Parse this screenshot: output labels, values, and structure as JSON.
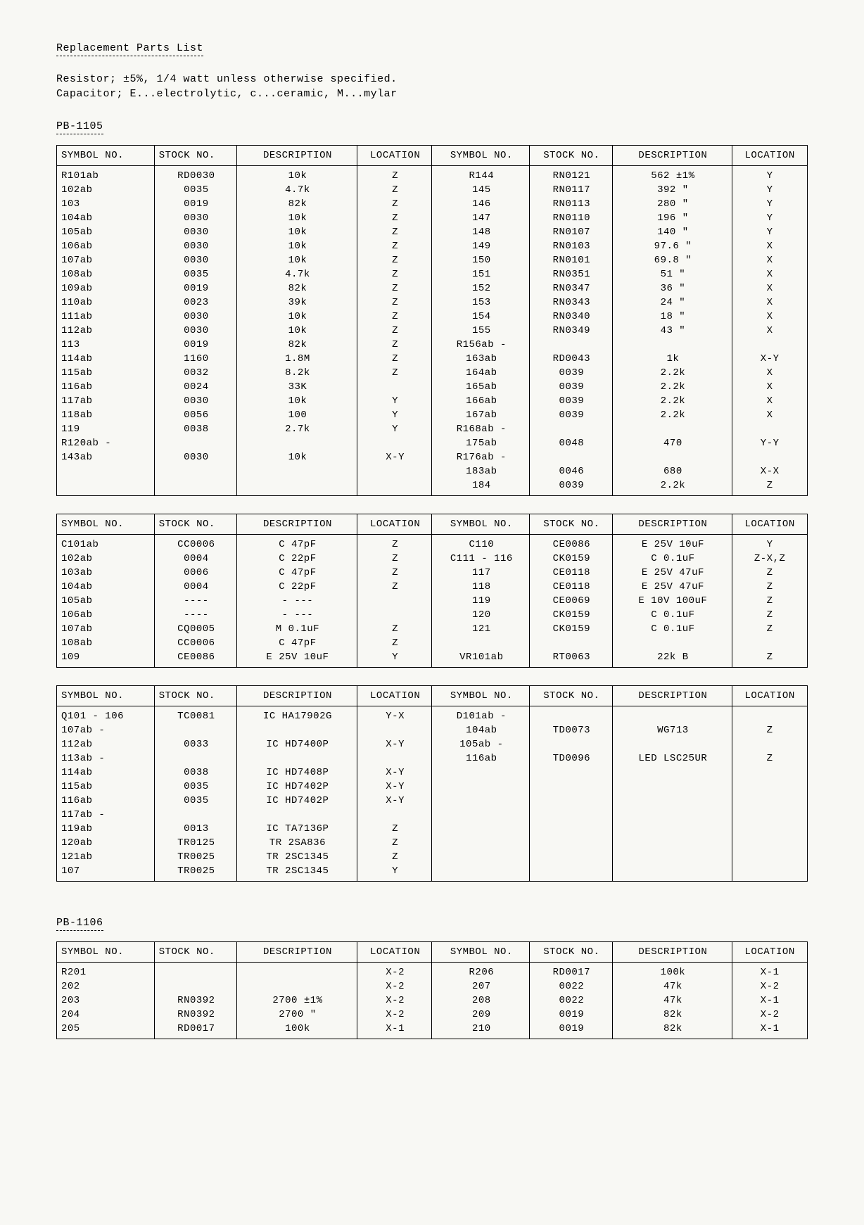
{
  "title": "Replacement Parts List",
  "intro1": "Resistor;  ±5%, 1/4 watt unless otherwise specified.",
  "intro2": "Capacitor; E...electrolytic,  c...ceramic,   M...mylar",
  "section1": "PB-1105",
  "cols": {
    "symbol": "SYMBOL NO.",
    "stock": "STOCK NO.",
    "desc": "DESCRIPTION",
    "loc": "LOCATION"
  },
  "t1": {
    "left": [
      {
        "s": "R101ab",
        "k": "RD0030",
        "d": "10k",
        "l": "Z"
      },
      {
        "s": "102ab",
        "k": "0035",
        "d": "4.7k",
        "l": "Z"
      },
      {
        "s": "103",
        "k": "0019",
        "d": "82k",
        "l": "Z"
      },
      {
        "s": "104ab",
        "k": "0030",
        "d": "10k",
        "l": "Z"
      },
      {
        "s": "105ab",
        "k": "0030",
        "d": "10k",
        "l": "Z"
      },
      {
        "s": "106ab",
        "k": "0030",
        "d": "10k",
        "l": "Z"
      },
      {
        "s": "107ab",
        "k": "0030",
        "d": "10k",
        "l": "Z"
      },
      {
        "s": "108ab",
        "k": "0035",
        "d": "4.7k",
        "l": "Z"
      },
      {
        "s": "109ab",
        "k": "0019",
        "d": "82k",
        "l": "Z"
      },
      {
        "s": "110ab",
        "k": "0023",
        "d": "39k",
        "l": "Z"
      },
      {
        "s": "111ab",
        "k": "0030",
        "d": "10k",
        "l": "Z"
      },
      {
        "s": "112ab",
        "k": "0030",
        "d": "10k",
        "l": "Z"
      },
      {
        "s": "113",
        "k": "0019",
        "d": "82k",
        "l": "Z"
      },
      {
        "s": "114ab",
        "k": "1160",
        "d": "1.8M",
        "l": "Z"
      },
      {
        "s": "115ab",
        "k": "0032",
        "d": "8.2k",
        "l": "Z"
      },
      {
        "s": "116ab",
        "k": "0024",
        "d": "33K",
        "l": ""
      },
      {
        "s": "117ab",
        "k": "0030",
        "d": "10k",
        "l": "Y"
      },
      {
        "s": "118ab",
        "k": "0056",
        "d": "100",
        "l": "Y"
      },
      {
        "s": "119",
        "k": "0038",
        "d": "2.7k",
        "l": "Y"
      },
      {
        "s": "R120ab -",
        "k": "",
        "d": "",
        "l": ""
      },
      {
        "s": "143ab",
        "k": "0030",
        "d": "10k",
        "l": "X-Y"
      },
      {
        "s": "",
        "k": "",
        "d": "",
        "l": ""
      },
      {
        "s": "",
        "k": "",
        "d": "",
        "l": ""
      }
    ],
    "right": [
      {
        "s": "R144",
        "k": "RN0121",
        "d": "562  ±1%",
        "l": "Y"
      },
      {
        "s": "145",
        "k": "RN0117",
        "d": "392   \"",
        "l": "Y"
      },
      {
        "s": "146",
        "k": "RN0113",
        "d": "280   \"",
        "l": "Y"
      },
      {
        "s": "147",
        "k": "RN0110",
        "d": "196   \"",
        "l": "Y"
      },
      {
        "s": "148",
        "k": "RN0107",
        "d": "140   \"",
        "l": "Y"
      },
      {
        "s": "149",
        "k": "RN0103",
        "d": "97.6  \"",
        "l": "X"
      },
      {
        "s": "150",
        "k": "RN0101",
        "d": "69.8  \"",
        "l": "X"
      },
      {
        "s": "151",
        "k": "RN0351",
        "d": "51    \"",
        "l": "X"
      },
      {
        "s": "152",
        "k": "RN0347",
        "d": "36    \"",
        "l": "X"
      },
      {
        "s": "153",
        "k": "RN0343",
        "d": "24    \"",
        "l": "X"
      },
      {
        "s": "154",
        "k": "RN0340",
        "d": "18    \"",
        "l": "X"
      },
      {
        "s": "155",
        "k": "RN0349",
        "d": "43    \"",
        "l": "X"
      },
      {
        "s": "R156ab -",
        "k": "",
        "d": "",
        "l": ""
      },
      {
        "s": "163ab",
        "k": "RD0043",
        "d": "1k",
        "l": "X-Y"
      },
      {
        "s": "164ab",
        "k": "0039",
        "d": "2.2k",
        "l": "X"
      },
      {
        "s": "165ab",
        "k": "0039",
        "d": "2.2k",
        "l": "X"
      },
      {
        "s": "166ab",
        "k": "0039",
        "d": "2.2k",
        "l": "X"
      },
      {
        "s": "167ab",
        "k": "0039",
        "d": "2.2k",
        "l": "X"
      },
      {
        "s": "R168ab -",
        "k": "",
        "d": "",
        "l": ""
      },
      {
        "s": "175ab",
        "k": "0048",
        "d": "470",
        "l": "Y-Y"
      },
      {
        "s": "R176ab -",
        "k": "",
        "d": "",
        "l": ""
      },
      {
        "s": "183ab",
        "k": "0046",
        "d": "680",
        "l": "X-X"
      },
      {
        "s": "184",
        "k": "0039",
        "d": "2.2k",
        "l": "Z"
      }
    ]
  },
  "t2": {
    "left": [
      {
        "s": "C101ab",
        "k": "CC0006",
        "d": "C  47pF",
        "l": "Z"
      },
      {
        "s": "102ab",
        "k": "0004",
        "d": "C  22pF",
        "l": "Z"
      },
      {
        "s": "103ab",
        "k": "0006",
        "d": "C  47pF",
        "l": "Z"
      },
      {
        "s": "104ab",
        "k": "0004",
        "d": "C  22pF",
        "l": "Z"
      },
      {
        "s": "105ab",
        "k": "----",
        "d": "-  ---",
        "l": ""
      },
      {
        "s": "106ab",
        "k": "----",
        "d": "-  ---",
        "l": ""
      },
      {
        "s": "107ab",
        "k": "CQ0005",
        "d": "M  0.1uF",
        "l": "Z"
      },
      {
        "s": "108ab",
        "k": "CC0006",
        "d": "C  47pF",
        "l": "Z"
      },
      {
        "s": "109",
        "k": "CE0086",
        "d": "E  25V 10uF",
        "l": "Y"
      }
    ],
    "right": [
      {
        "s": "C110",
        "k": "CE0086",
        "d": "E  25V 10uF",
        "l": "Y"
      },
      {
        "s": "C111 - 116",
        "k": "CK0159",
        "d": "C  0.1uF",
        "l": "Z-X,Z"
      },
      {
        "s": "117",
        "k": "CE0118",
        "d": "E  25V 47uF",
        "l": "Z"
      },
      {
        "s": "118",
        "k": "CE0118",
        "d": "E  25V 47uF",
        "l": "Z"
      },
      {
        "s": "119",
        "k": "CE0069",
        "d": "E  10V 100uF",
        "l": "Z"
      },
      {
        "s": "120",
        "k": "CK0159",
        "d": "C  0.1uF",
        "l": "Z"
      },
      {
        "s": "121",
        "k": "CK0159",
        "d": "C  0.1uF",
        "l": "Z"
      },
      {
        "s": "",
        "k": "",
        "d": "",
        "l": ""
      },
      {
        "s": "VR101ab",
        "k": "RT0063",
        "d": "22k B",
        "l": "Z"
      }
    ]
  },
  "t3": {
    "left": [
      {
        "s": "Q101 - 106",
        "k": "TC0081",
        "d": "IC HA17902G",
        "l": "Y-X"
      },
      {
        "s": "107ab -",
        "k": "",
        "d": "",
        "l": ""
      },
      {
        "s": "112ab",
        "k": "0033",
        "d": "IC HD7400P",
        "l": "X-Y"
      },
      {
        "s": "113ab -",
        "k": "",
        "d": "",
        "l": ""
      },
      {
        "s": "114ab",
        "k": "0038",
        "d": "IC HD7408P",
        "l": "X-Y"
      },
      {
        "s": "115ab",
        "k": "0035",
        "d": "IC HD7402P",
        "l": "X-Y"
      },
      {
        "s": "116ab",
        "k": "0035",
        "d": "IC HD7402P",
        "l": "X-Y"
      },
      {
        "s": "117ab -",
        "k": "",
        "d": "",
        "l": ""
      },
      {
        "s": "119ab",
        "k": "0013",
        "d": "IC TA7136P",
        "l": "Z"
      },
      {
        "s": "120ab",
        "k": "TR0125",
        "d": "TR 2SA836",
        "l": "Z"
      },
      {
        "s": "121ab",
        "k": "TR0025",
        "d": "TR 2SC1345",
        "l": "Z"
      },
      {
        "s": "107",
        "k": "TR0025",
        "d": "TR 2SC1345",
        "l": "Y"
      }
    ],
    "right": [
      {
        "s": "D101ab -",
        "k": "",
        "d": "",
        "l": ""
      },
      {
        "s": "104ab",
        "k": "TD0073",
        "d": "WG713",
        "l": "Z"
      },
      {
        "s": "105ab -",
        "k": "",
        "d": "",
        "l": ""
      },
      {
        "s": "116ab",
        "k": "TD0096",
        "d": "LED LSC25UR",
        "l": "Z"
      },
      {
        "s": "",
        "k": "",
        "d": "",
        "l": ""
      },
      {
        "s": "",
        "k": "",
        "d": "",
        "l": ""
      },
      {
        "s": "",
        "k": "",
        "d": "",
        "l": ""
      },
      {
        "s": "",
        "k": "",
        "d": "",
        "l": ""
      },
      {
        "s": "",
        "k": "",
        "d": "",
        "l": ""
      },
      {
        "s": "",
        "k": "",
        "d": "",
        "l": ""
      },
      {
        "s": "",
        "k": "",
        "d": "",
        "l": ""
      },
      {
        "s": "",
        "k": "",
        "d": "",
        "l": ""
      }
    ]
  },
  "section2": "PB-1106",
  "t4": {
    "left": [
      {
        "s": "R201",
        "k": "",
        "d": "",
        "l": "X-2"
      },
      {
        "s": "202",
        "k": "",
        "d": "",
        "l": "X-2"
      },
      {
        "s": "203",
        "k": "RN0392",
        "d": "2700  ±1%",
        "l": "X-2"
      },
      {
        "s": "204",
        "k": "RN0392",
        "d": "2700   \"",
        "l": "X-2"
      },
      {
        "s": "205",
        "k": "RD0017",
        "d": "100k",
        "l": "X-1"
      }
    ],
    "right": [
      {
        "s": "R206",
        "k": "RD0017",
        "d": "100k",
        "l": "X-1"
      },
      {
        "s": "207",
        "k": "0022",
        "d": "47k",
        "l": "X-2"
      },
      {
        "s": "208",
        "k": "0022",
        "d": "47k",
        "l": "X-1"
      },
      {
        "s": "209",
        "k": "0019",
        "d": "82k",
        "l": "X-2"
      },
      {
        "s": "210",
        "k": "0019",
        "d": "82k",
        "l": "X-1"
      }
    ]
  },
  "widths": {
    "symbol": "13%",
    "stock": "11%",
    "desc": "16%",
    "loc": "10%"
  }
}
